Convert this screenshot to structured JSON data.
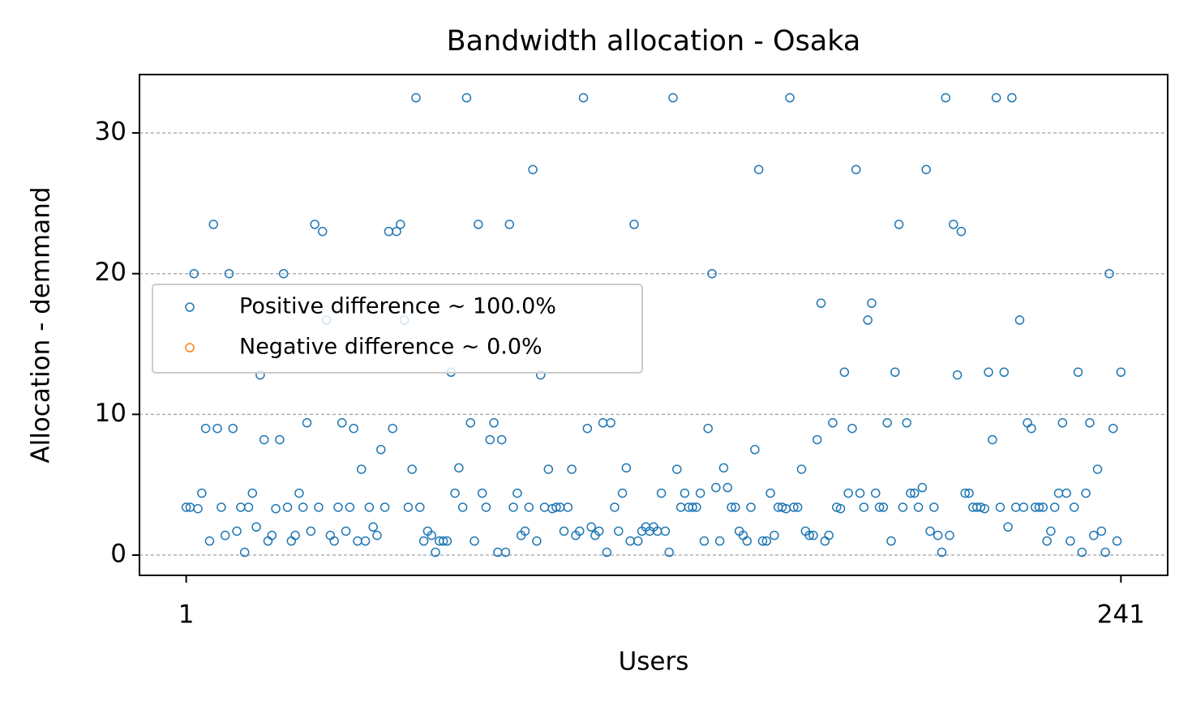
{
  "chart_data": {
    "type": "scatter",
    "title": "Bandwidth allocation - Osaka",
    "xlabel": "Users",
    "ylabel": "Allocation - demmand",
    "xlim": [
      -11,
      253
    ],
    "ylim": [
      -1.44,
      34.15
    ],
    "xticks": [
      1,
      241
    ],
    "yticks": [
      0,
      10,
      20,
      30
    ],
    "grid": true,
    "legend": "center left",
    "series": [
      {
        "name": "Positive difference ~ 100.0%",
        "color": "#1f77b4",
        "x": [
          1,
          2,
          3,
          4,
          5,
          6,
          7,
          8,
          9,
          10,
          11,
          12,
          13,
          14,
          15,
          16,
          17,
          18,
          19,
          20,
          21,
          22,
          23,
          24,
          25,
          26,
          27,
          28,
          29,
          30,
          31,
          32,
          33,
          34,
          35,
          36,
          37,
          38,
          39,
          40,
          41,
          42,
          43,
          44,
          45,
          46,
          47,
          48,
          49,
          50,
          51,
          52,
          53,
          54,
          55,
          56,
          57,
          58,
          59,
          60,
          61,
          62,
          63,
          64,
          65,
          66,
          67,
          68,
          69,
          70,
          71,
          72,
          73,
          74,
          75,
          76,
          77,
          78,
          79,
          80,
          81,
          82,
          83,
          84,
          85,
          86,
          87,
          88,
          89,
          90,
          91,
          92,
          93,
          94,
          95,
          96,
          97,
          98,
          99,
          100,
          101,
          102,
          103,
          104,
          105,
          106,
          107,
          108,
          109,
          110,
          111,
          112,
          113,
          114,
          115,
          116,
          117,
          118,
          119,
          120,
          121,
          122,
          123,
          124,
          125,
          126,
          127,
          128,
          129,
          130,
          131,
          132,
          133,
          134,
          135,
          136,
          137,
          138,
          139,
          140,
          141,
          142,
          143,
          144,
          145,
          146,
          147,
          148,
          149,
          150,
          151,
          152,
          153,
          154,
          155,
          156,
          157,
          158,
          159,
          160,
          161,
          162,
          163,
          164,
          165,
          166,
          167,
          168,
          169,
          170,
          171,
          172,
          173,
          174,
          175,
          176,
          177,
          178,
          179,
          180,
          181,
          182,
          183,
          184,
          185,
          186,
          187,
          188,
          189,
          190,
          191,
          192,
          193,
          194,
          195,
          196,
          197,
          198,
          199,
          200,
          201,
          202,
          203,
          204,
          205,
          206,
          207,
          208,
          209,
          210,
          211,
          212,
          213,
          214,
          215,
          216,
          217,
          218,
          219,
          220,
          221,
          222,
          223,
          224,
          225,
          226,
          227,
          228,
          229,
          230,
          231,
          232,
          233,
          234,
          235,
          236,
          237,
          238,
          239,
          240,
          241
        ],
        "values": [
          3.4,
          3.4,
          20.0,
          3.3,
          4.4,
          9.0,
          1.0,
          23.5,
          9.0,
          3.4,
          1.4,
          20.0,
          9.0,
          1.7,
          3.4,
          0.2,
          3.4,
          4.4,
          2.0,
          12.8,
          8.2,
          1.0,
          1.4,
          3.3,
          8.2,
          20.0,
          3.4,
          1.0,
          1.4,
          4.4,
          3.4,
          9.4,
          1.7,
          23.5,
          3.4,
          23.0,
          16.7,
          1.4,
          1.0,
          3.4,
          9.4,
          1.7,
          3.4,
          9.0,
          1.0,
          6.1,
          1.0,
          3.4,
          2.0,
          1.4,
          7.5,
          3.4,
          23.0,
          9.0,
          23.0,
          23.5,
          16.7,
          3.4,
          6.1,
          32.5,
          3.4,
          1.0,
          1.7,
          1.4,
          0.2,
          1.0,
          1.0,
          1.0,
          13.0,
          4.4,
          6.2,
          3.4,
          32.5,
          9.4,
          1.0,
          23.5,
          4.4,
          3.4,
          8.2,
          9.4,
          0.2,
          8.2,
          0.2,
          23.5,
          3.4,
          4.4,
          1.4,
          1.7,
          3.4,
          27.4,
          1.0,
          12.8,
          3.4,
          6.1,
          3.3,
          3.4,
          3.4,
          1.7,
          3.4,
          6.1,
          1.4,
          1.7,
          32.5,
          9.0,
          2.0,
          1.4,
          1.7,
          9.4,
          0.2,
          9.4,
          3.4,
          1.7,
          4.4,
          6.2,
          1.0,
          23.5,
          1.0,
          1.7,
          2.0,
          1.7,
          2.0,
          1.7,
          4.4,
          1.7,
          0.2,
          32.5,
          6.1,
          3.4,
          4.4,
          3.4,
          3.4,
          3.4,
          4.4,
          1.0,
          9.0,
          20.0,
          4.8,
          1.0,
          6.2,
          4.8,
          3.4,
          3.4,
          1.7,
          1.4,
          1.0,
          3.4,
          7.5,
          27.4,
          1.0,
          1.0,
          4.4,
          1.4,
          3.4,
          3.4,
          3.3,
          32.5,
          3.4,
          3.4,
          6.1,
          1.7,
          1.4,
          1.4,
          8.2,
          17.9,
          1.0,
          1.4,
          9.4,
          3.4,
          3.3,
          13.0,
          4.4,
          9.0,
          27.4,
          4.4,
          3.4,
          16.7,
          17.9,
          4.4,
          3.4,
          3.4,
          9.4,
          1.0,
          13.0,
          23.5,
          3.4,
          9.4,
          4.4,
          4.4,
          3.4,
          4.8,
          27.4,
          1.7,
          3.4,
          1.4,
          0.2,
          32.5,
          1.4,
          23.5,
          12.8,
          23.0,
          4.4,
          4.4,
          3.4,
          3.4,
          3.4,
          3.3,
          13.0,
          8.2,
          32.5,
          3.4,
          13.0,
          2.0,
          32.5,
          3.4,
          16.7,
          3.4,
          9.4,
          9.0,
          3.4,
          3.4,
          3.4,
          1.0,
          1.7,
          3.4,
          4.4,
          9.4,
          4.4,
          1.0,
          3.4,
          13.0,
          0.2,
          4.4,
          9.4,
          1.4,
          6.1,
          1.7,
          0.2,
          20.0,
          9.0,
          1.0,
          13.0
        ]
      },
      {
        "name": "Negative difference ~ 0.0%",
        "color": "#ff7f0e",
        "x": [],
        "values": []
      }
    ]
  }
}
